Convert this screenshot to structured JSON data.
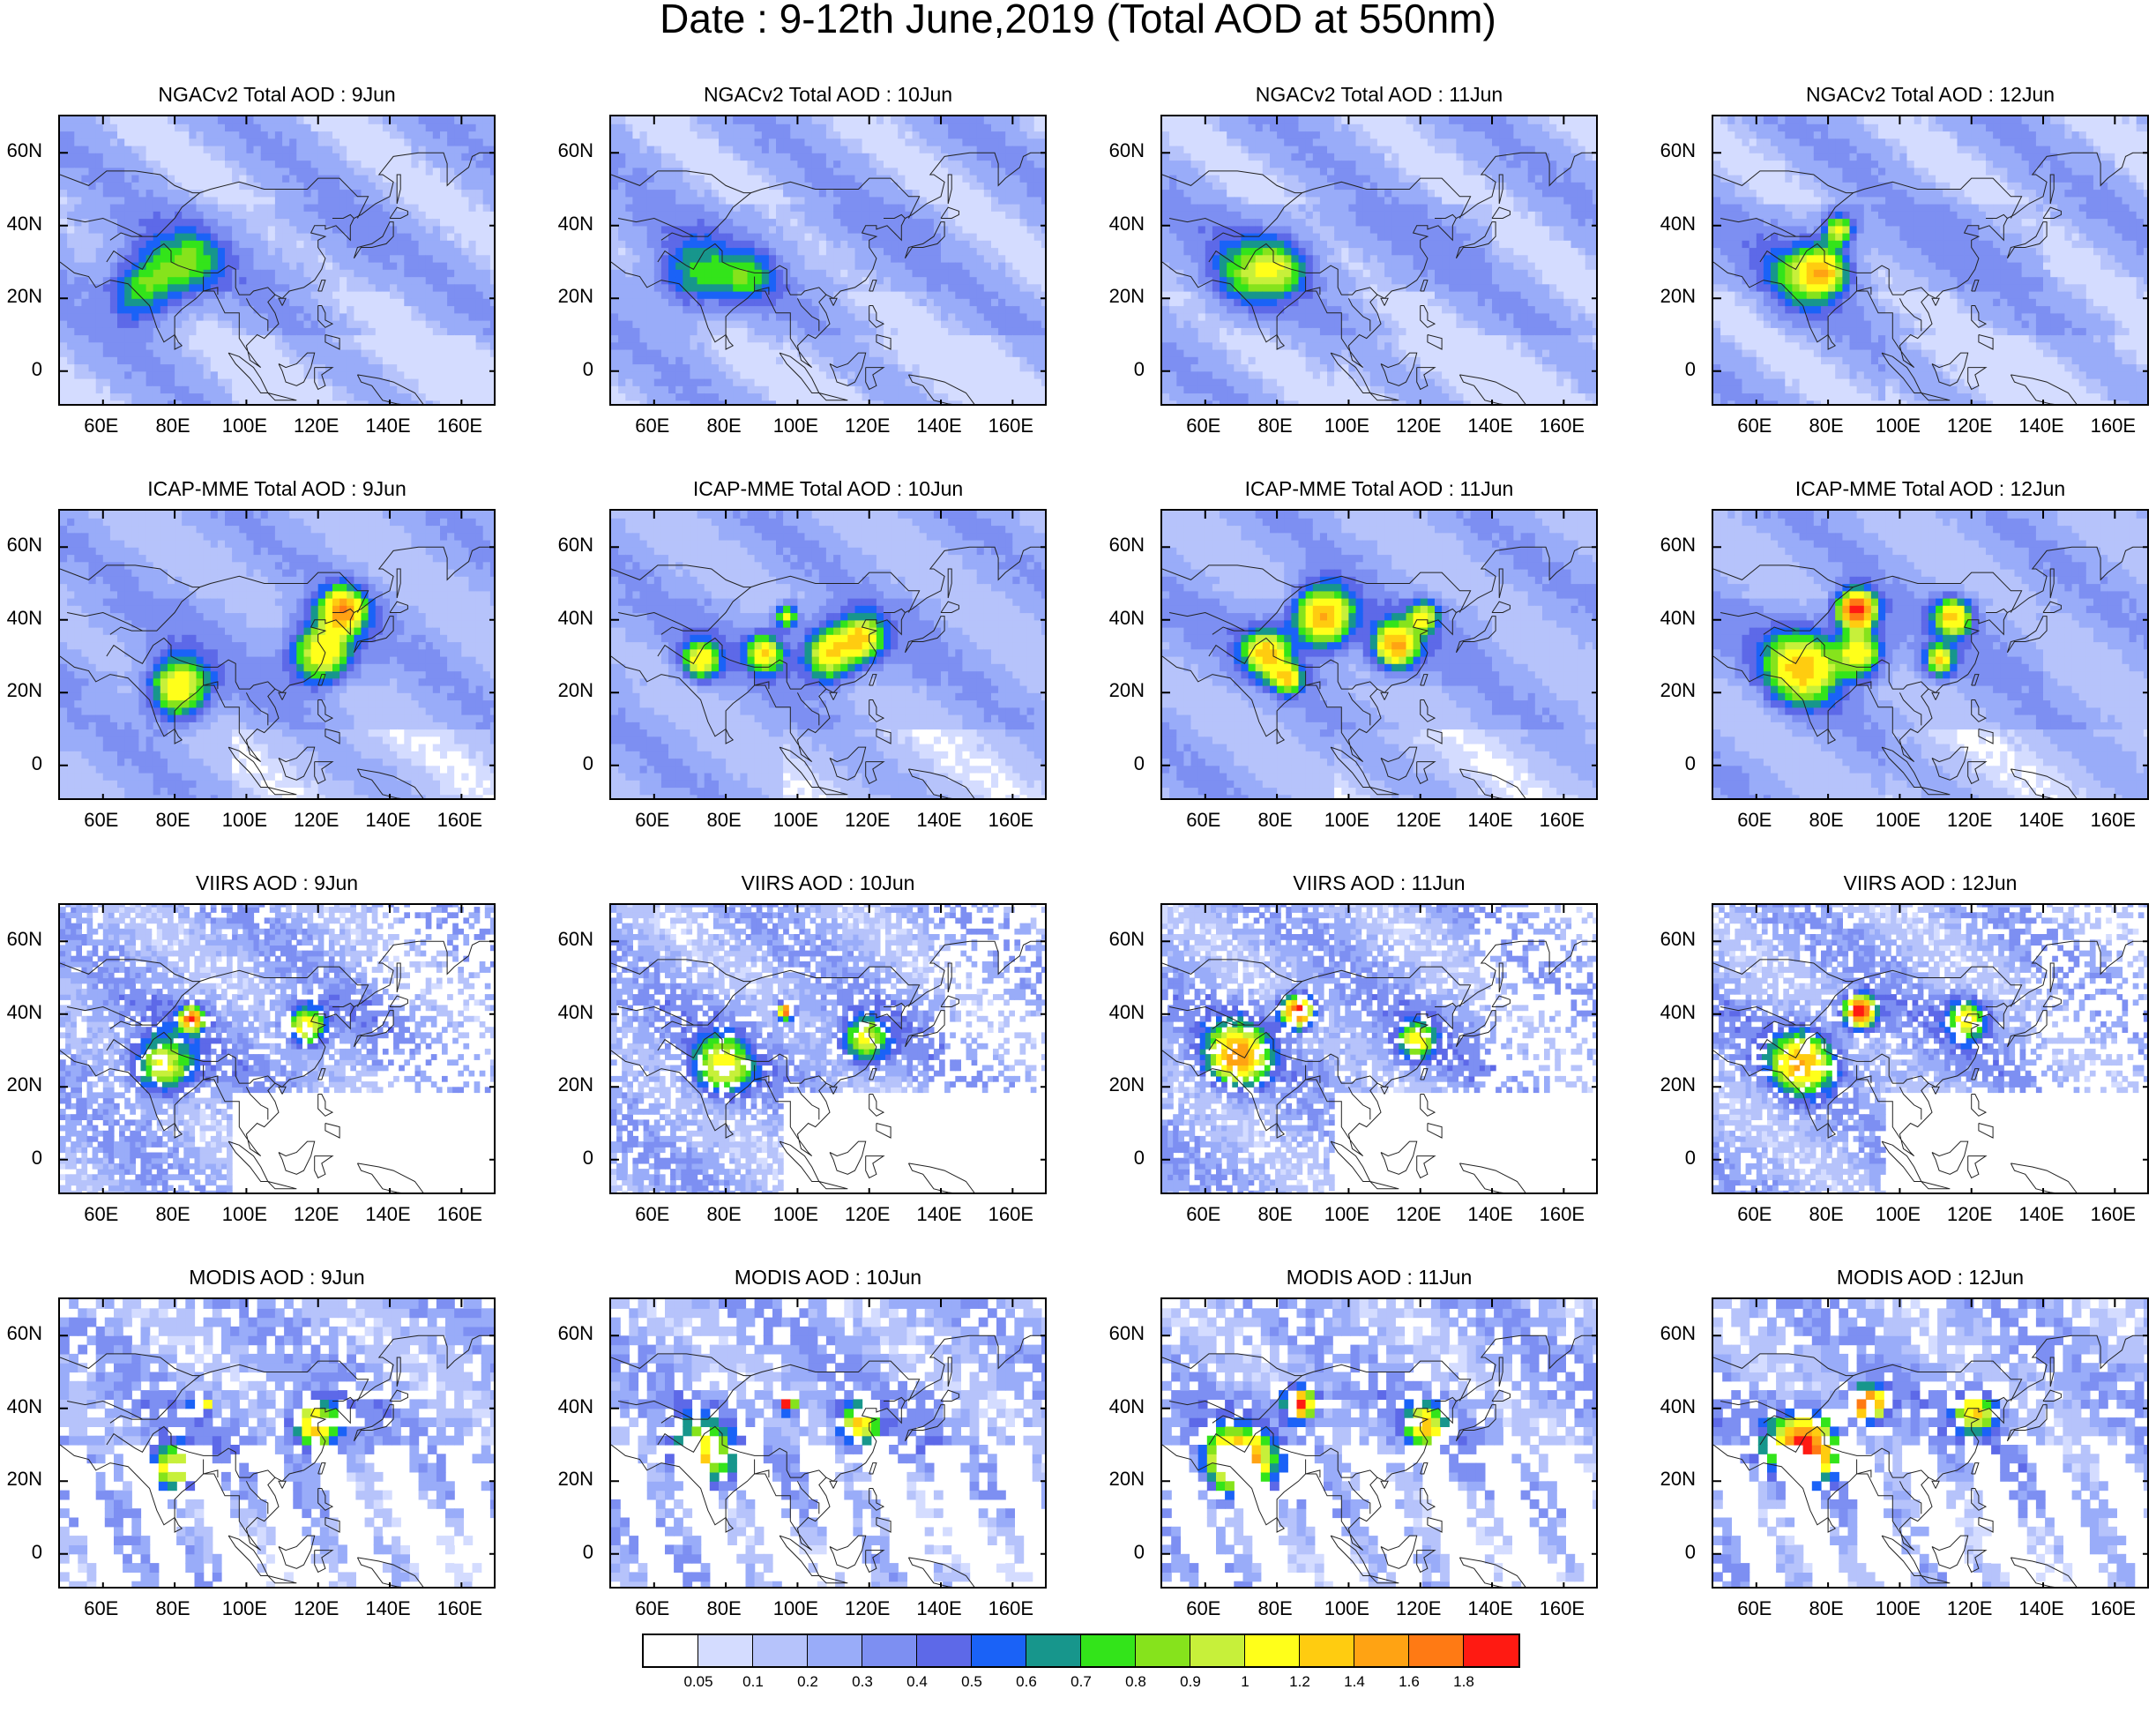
{
  "title": "Date : 9-12th June,2019 (Total AOD at 550nm)",
  "lat_labels": [
    "60N",
    "40N",
    "20N",
    "0"
  ],
  "lon_labels": [
    "60E",
    "80E",
    "100E",
    "120E",
    "140E",
    "160E"
  ],
  "rows": [
    {
      "kind": "model-smooth",
      "panels": [
        {
          "title": "NGACv2 Total AOD : 9Jun"
        },
        {
          "title": "NGACv2 Total AOD : 10Jun"
        },
        {
          "title": "NGACv2 Total AOD : 11Jun"
        },
        {
          "title": "NGACv2 Total AOD : 12Jun"
        }
      ]
    },
    {
      "kind": "model-plume",
      "panels": [
        {
          "title": "ICAP-MME Total AOD : 9Jun"
        },
        {
          "title": "ICAP-MME Total AOD : 10Jun"
        },
        {
          "title": "ICAP-MME Total AOD : 11Jun"
        },
        {
          "title": "ICAP-MME Total AOD : 12Jun"
        }
      ]
    },
    {
      "kind": "satellite-fine",
      "panels": [
        {
          "title": "VIIRS AOD : 9Jun"
        },
        {
          "title": "VIIRS AOD : 10Jun"
        },
        {
          "title": "VIIRS AOD : 11Jun"
        },
        {
          "title": "VIIRS AOD : 12Jun"
        }
      ]
    },
    {
      "kind": "satellite-coarse",
      "panels": [
        {
          "title": "MODIS AOD : 9Jun"
        },
        {
          "title": "MODIS AOD : 10Jun"
        },
        {
          "title": "MODIS AOD : 11Jun"
        },
        {
          "title": "MODIS AOD : 12Jun"
        }
      ]
    }
  ],
  "colorbar": {
    "labels": [
      "0.05",
      "0.1",
      "0.2",
      "0.3",
      "0.4",
      "0.5",
      "0.6",
      "0.7",
      "0.8",
      "0.9",
      "1",
      "1.2",
      "1.4",
      "1.6",
      "1.8"
    ],
    "colors": [
      "#ffffff",
      "#d4dcff",
      "#b6c3fb",
      "#99acf9",
      "#7d8ff2",
      "#5d69e8",
      "#1a62f7",
      "#17968c",
      "#33e41a",
      "#86e31c",
      "#c7f03a",
      "#ffff1a",
      "#ffcc10",
      "#ffa313",
      "#ff7a14",
      "#ff1a12"
    ]
  }
}
